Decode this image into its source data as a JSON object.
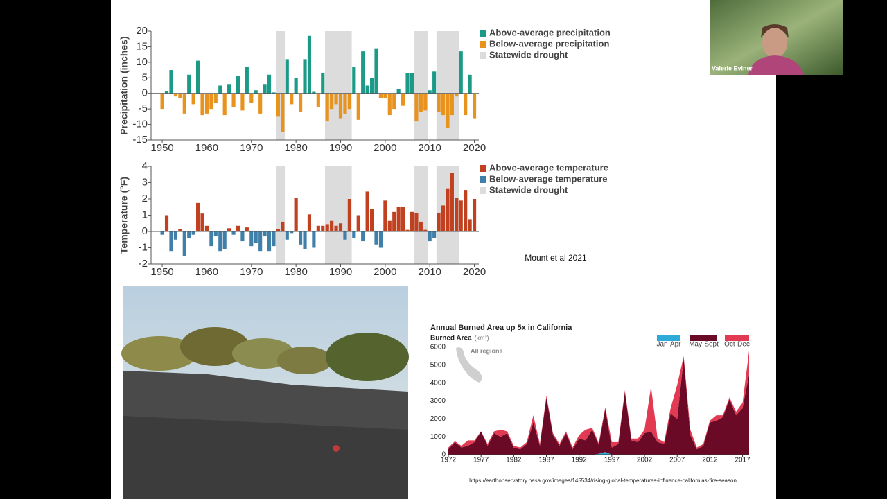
{
  "chart_data": [
    {
      "type": "bar",
      "y_label": "Precipitation (inches)",
      "x": [
        1950,
        1951,
        1952,
        1953,
        1954,
        1955,
        1956,
        1957,
        1958,
        1959,
        1960,
        1961,
        1962,
        1963,
        1964,
        1965,
        1966,
        1967,
        1968,
        1969,
        1970,
        1971,
        1972,
        1973,
        1974,
        1975,
        1976,
        1977,
        1978,
        1979,
        1980,
        1981,
        1982,
        1983,
        1984,
        1985,
        1986,
        1987,
        1988,
        1989,
        1990,
        1991,
        1992,
        1993,
        1994,
        1995,
        1996,
        1997,
        1998,
        1999,
        2000,
        2001,
        2002,
        2003,
        2004,
        2005,
        2006,
        2007,
        2008,
        2009,
        2010,
        2011,
        2012,
        2013,
        2014,
        2015,
        2016,
        2017,
        2018,
        2019,
        2020
      ],
      "values": [
        -5,
        0.7,
        7.5,
        -1,
        -1.5,
        -6.5,
        6,
        -3.5,
        10.5,
        -7,
        -6.5,
        -5,
        -3,
        2.5,
        -7,
        3,
        -4.5,
        5.5,
        -5.5,
        8.5,
        -3,
        1,
        -6.5,
        3,
        6,
        0.3,
        -7.5,
        -12.5,
        11,
        -3.5,
        5,
        -6,
        11,
        18.5,
        0.5,
        -4.5,
        6.5,
        -9,
        -5,
        -3.5,
        -8,
        -6.5,
        -5,
        8.5,
        -8.5,
        13.5,
        2.5,
        5,
        14.5,
        -1.5,
        -1.5,
        -7,
        -5,
        1.5,
        -4,
        6.5,
        6.5,
        -9,
        -6,
        -5.5,
        1,
        7,
        -6,
        -7,
        -11,
        -7,
        -1,
        13.5,
        -7,
        6,
        -8
      ],
      "legend": [
        {
          "name": "Above-average precipitation",
          "color": "#1a9a87"
        },
        {
          "name": "Below-average precipitation",
          "color": "#e8931e"
        },
        {
          "name": "Statewide drought",
          "color": "#dcdcdc"
        }
      ],
      "drought_periods": [
        [
          1976,
          1977
        ],
        [
          1987,
          1992
        ],
        [
          2007,
          2009
        ],
        [
          2012,
          2016
        ]
      ],
      "xlim": [
        1947.5,
        2021
      ],
      "ylim": [
        -15,
        20
      ],
      "xticks": [
        1950,
        1960,
        1970,
        1980,
        1990,
        2000,
        2010,
        2020
      ],
      "yticks": [
        -15,
        -10,
        -5,
        0,
        5,
        10,
        15,
        20
      ]
    },
    {
      "type": "bar",
      "y_label": "Temperature (°F)",
      "x": [
        1950,
        1951,
        1952,
        1953,
        1954,
        1955,
        1956,
        1957,
        1958,
        1959,
        1960,
        1961,
        1962,
        1963,
        1964,
        1965,
        1966,
        1967,
        1968,
        1969,
        1970,
        1971,
        1972,
        1973,
        1974,
        1975,
        1976,
        1977,
        1978,
        1979,
        1980,
        1981,
        1982,
        1983,
        1984,
        1985,
        1986,
        1987,
        1988,
        1989,
        1990,
        1991,
        1992,
        1993,
        1994,
        1995,
        1996,
        1997,
        1998,
        1999,
        2000,
        2001,
        2002,
        2003,
        2004,
        2005,
        2006,
        2007,
        2008,
        2009,
        2010,
        2011,
        2012,
        2013,
        2014,
        2015,
        2016,
        2017,
        2018,
        2019,
        2020
      ],
      "values": [
        -0.2,
        1.0,
        -1.2,
        -0.5,
        0.15,
        -1.5,
        -0.4,
        -0.2,
        1.75,
        1.1,
        0.35,
        -0.9,
        -0.3,
        -1.2,
        -1.1,
        0.2,
        -0.2,
        0.35,
        -0.6,
        0.25,
        -0.9,
        -0.7,
        -1.2,
        -0.3,
        -1.2,
        -0.9,
        0.15,
        0.6,
        -0.5,
        -0.1,
        2.05,
        -0.8,
        -1.1,
        1.05,
        -1.0,
        0.35,
        0.35,
        0.45,
        0.65,
        0.35,
        0.5,
        -0.5,
        2.0,
        -0.4,
        1.0,
        -0.6,
        2.45,
        1.4,
        -0.8,
        -1.0,
        1.9,
        0.65,
        1.2,
        1.5,
        1.5,
        0.1,
        1.2,
        1.15,
        0.6,
        0.1,
        -0.6,
        -0.4,
        1.15,
        1.6,
        2.65,
        3.6,
        2.05,
        1.9,
        2.55,
        0.75,
        2.0
      ],
      "legend": [
        {
          "name": "Above-average temperature",
          "color": "#c0401f"
        },
        {
          "name": "Below-average temperature",
          "color": "#3f7fa8"
        },
        {
          "name": "Statewide drought",
          "color": "#dcdcdc"
        }
      ],
      "drought_periods": [
        [
          1976,
          1977
        ],
        [
          1987,
          1992
        ],
        [
          2007,
          2009
        ],
        [
          2012,
          2016
        ]
      ],
      "xlim": [
        1947.5,
        2021
      ],
      "ylim": [
        -2,
        4
      ],
      "xticks": [
        1950,
        1960,
        1970,
        1980,
        1990,
        2000,
        2010,
        2020
      ],
      "yticks": [
        -2,
        -1,
        0,
        1,
        2,
        3,
        4
      ]
    },
    {
      "type": "stacked_area",
      "title": "Annual Burned Area up 5x in California",
      "y_label": "Burned Area",
      "y_unit": "(km²)",
      "annotation": "All regions",
      "x": [
        1972,
        1973,
        1974,
        1975,
        1976,
        1977,
        1978,
        1979,
        1980,
        1981,
        1982,
        1983,
        1984,
        1985,
        1986,
        1987,
        1988,
        1989,
        1990,
        1991,
        1992,
        1993,
        1994,
        1995,
        1996,
        1997,
        1998,
        1999,
        2000,
        2001,
        2002,
        2003,
        2004,
        2005,
        2006,
        2007,
        2008,
        2009,
        2010,
        2011,
        2012,
        2013,
        2014,
        2015,
        2016,
        2017,
        2018
      ],
      "series": [
        {
          "name": "Jan-Apr",
          "color": "#2eaad8",
          "values": [
            0,
            0,
            0,
            0,
            0,
            0,
            0,
            0,
            0,
            0,
            0,
            0,
            0,
            0,
            0,
            0,
            0,
            0,
            0,
            0,
            0,
            0,
            0,
            50,
            150,
            0,
            0,
            0,
            0,
            0,
            0,
            0,
            0,
            0,
            0,
            0,
            0,
            0,
            0,
            0,
            0,
            0,
            0,
            0,
            0,
            0,
            0
          ]
        },
        {
          "name": "May-Sept",
          "color": "#6a0a26",
          "values": [
            300,
            700,
            400,
            500,
            700,
            1300,
            500,
            1200,
            1000,
            1200,
            400,
            300,
            600,
            1800,
            500,
            3200,
            1100,
            500,
            1200,
            300,
            900,
            800,
            1400,
            500,
            2400,
            400,
            600,
            3500,
            800,
            700,
            1200,
            1300,
            700,
            600,
            2300,
            2000,
            5400,
            1100,
            300,
            500,
            1800,
            1900,
            2100,
            3100,
            2200,
            2600,
            4500
          ]
        },
        {
          "name": "Oct-Dec",
          "color": "#e23a52",
          "values": [
            100,
            50,
            100,
            300,
            100,
            0,
            100,
            100,
            400,
            100,
            100,
            100,
            100,
            400,
            100,
            100,
            100,
            100,
            100,
            100,
            200,
            600,
            100,
            100,
            100,
            300,
            100,
            100,
            100,
            200,
            200,
            2500,
            200,
            100,
            300,
            1900,
            100,
            300,
            100,
            100,
            100,
            300,
            100,
            100,
            200,
            300,
            1300
          ]
        }
      ],
      "xlim": [
        1972,
        2018
      ],
      "ylim": [
        0,
        6000
      ],
      "xticks": [
        1972,
        1977,
        1982,
        1987,
        1992,
        1997,
        2002,
        2007,
        2012,
        2017
      ],
      "yticks": [
        0,
        1000,
        2000,
        3000,
        4000,
        5000,
        6000
      ]
    }
  ],
  "source_note": "Mount et al 2021",
  "source_url": "https://earthobservatory.nasa.gov/images/145534/rising-global-temperatures-influence-californias-fire-season",
  "participant_name": "Valerie Eviner"
}
